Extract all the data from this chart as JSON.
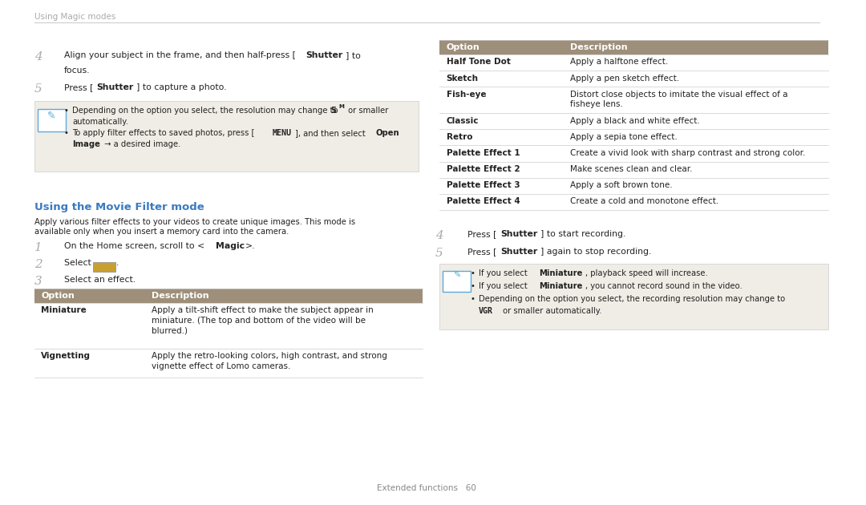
{
  "bg_color": "#ffffff",
  "header_text": "Using Magic modes",
  "header_color": "#aaaaaa",
  "divider_color": "#cccccc",
  "section_title_color": "#3a7abf",
  "table_header_bg": "#9e8f7a",
  "table_header_text_color": "#ffffff",
  "table_row_line_color": "#cccccc",
  "note_bg": "#f0ede6",
  "note_border_color": "#cccccc",
  "note_icon_color": "#5aaae0",
  "body_text_color": "#222222",
  "step_number_color": "#aaaaaa",
  "footer_color": "#888888",
  "footer_text": "Extended functions   60",
  "section_title": "Using the Movie Filter mode",
  "right_table_rows": [
    {
      "option": "Half Tone Dot",
      "desc": "Apply a halftone effect.",
      "multiline": false
    },
    {
      "option": "Sketch",
      "desc": "Apply a pen sketch effect.",
      "multiline": false
    },
    {
      "option": "Fish-eye",
      "desc": "Distort close objects to imitate the visual effect of a\nfisheye lens.",
      "multiline": true
    },
    {
      "option": "Classic",
      "desc": "Apply a black and white effect.",
      "multiline": false
    },
    {
      "option": "Retro",
      "desc": "Apply a sepia tone effect.",
      "multiline": false
    },
    {
      "option": "Palette Effect 1",
      "desc": "Create a vivid look with sharp contrast and strong color.",
      "multiline": false
    },
    {
      "option": "Palette Effect 2",
      "desc": "Make scenes clean and clear.",
      "multiline": false
    },
    {
      "option": "Palette Effect 3",
      "desc": "Apply a soft brown tone.",
      "multiline": false
    },
    {
      "option": "Palette Effect 4",
      "desc": "Create a cold and monotone effect.",
      "multiline": false
    }
  ]
}
